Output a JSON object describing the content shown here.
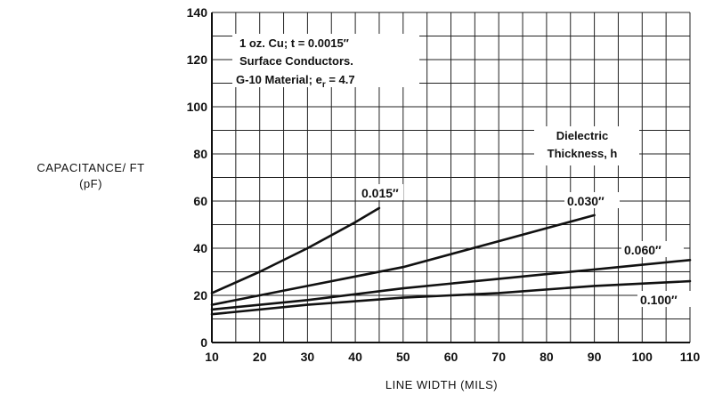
{
  "chart_data": {
    "type": "line",
    "title": "",
    "xlabel": "LINE WIDTH (MILS)",
    "ylabel_line1": "CAPACITANCE/ FT",
    "ylabel_line2": "(pF)",
    "xlim": [
      10,
      110
    ],
    "ylim": [
      0,
      140
    ],
    "x_ticks": [
      10,
      20,
      30,
      40,
      50,
      60,
      70,
      80,
      90,
      100,
      110
    ],
    "y_ticks": [
      0,
      20,
      40,
      60,
      80,
      100,
      120,
      140
    ],
    "grid": true,
    "grid_x_step": 5,
    "grid_y_step": 10,
    "annotation_lines": [
      "1 oz. Cu; t = 0.0015″",
      "Surface Conductors.",
      "G-10 Material; e",
      "r",
      " = 4.7"
    ],
    "legend_title_line1": "Dielectric",
    "legend_title_line2": "Thickness, h",
    "series": [
      {
        "name": "0.015″",
        "x": [
          10,
          20,
          30,
          40,
          45
        ],
        "y": [
          21,
          30,
          40,
          51,
          57
        ]
      },
      {
        "name": "0.030″",
        "x": [
          10,
          30,
          50,
          70,
          90
        ],
        "y": [
          16,
          24,
          32,
          43,
          54
        ]
      },
      {
        "name": "0.060″",
        "x": [
          10,
          30,
          50,
          70,
          90,
          110
        ],
        "y": [
          14,
          18,
          23,
          27,
          31,
          35
        ]
      },
      {
        "name": "0.100″",
        "x": [
          10,
          30,
          50,
          70,
          90,
          110
        ],
        "y": [
          12,
          16,
          19,
          21,
          24,
          26
        ]
      }
    ]
  }
}
